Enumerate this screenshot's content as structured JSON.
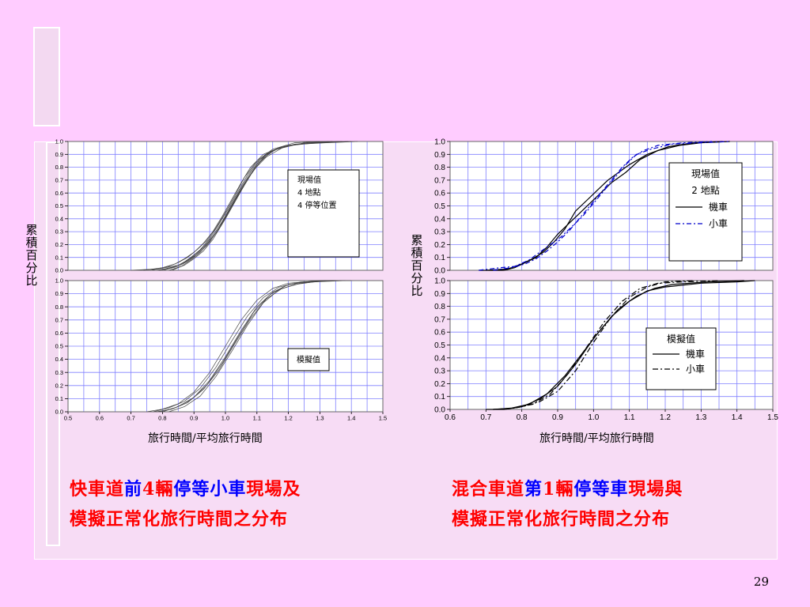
{
  "page_number": "29",
  "left_panel": {
    "ylabel": "累積百分比",
    "xlabel": "旅行時間/平均旅行時間",
    "caption_line1": [
      {
        "text": "快車道",
        "color": "red"
      },
      {
        "text": "前",
        "color": "blue"
      },
      {
        "text": "4",
        "color": "red"
      },
      {
        "text": "輛",
        "color": "red"
      },
      {
        "text": "停等小車",
        "color": "blue"
      },
      {
        "text": "現場及",
        "color": "red"
      }
    ],
    "caption_line2": "模擬正常化旅行時間之分布"
  },
  "right_panel": {
    "ylabel": "累積百分比",
    "xlabel": "旅行時間/平均旅行時間",
    "caption_line1": [
      {
        "text": "混合車道",
        "color": "red"
      },
      {
        "text": "第",
        "color": "blue"
      },
      {
        "text": "1",
        "color": "red"
      },
      {
        "text": "輛",
        "color": "red"
      },
      {
        "text": "停等車",
        "color": "blue"
      },
      {
        "text": "現場與",
        "color": "red"
      }
    ],
    "caption_line2": "模擬正常化旅行時間之分布"
  },
  "chart_data": [
    {
      "id": "left-top",
      "type": "line",
      "legend_lines": [
        "現場值",
        "4 地點",
        "4 停等位置"
      ],
      "legend_placement": "right",
      "xlim": [
        0.5,
        1.5
      ],
      "ylim": [
        0.0,
        1.0
      ],
      "x_ticks": [],
      "y_ticks": [
        "0.0",
        "0.1",
        "0.2",
        "0.3",
        "0.4",
        "0.5",
        "0.6",
        "0.7",
        "0.8",
        "0.9",
        "1.0"
      ],
      "grid": true,
      "line_color": "#444444",
      "series": [
        {
          "x": [
            0.7,
            0.78,
            0.82,
            0.85,
            0.88,
            0.91,
            0.94,
            0.97,
            1.0,
            1.03,
            1.06,
            1.1,
            1.15,
            1.22,
            1.3
          ],
          "y": [
            0.0,
            0.01,
            0.03,
            0.06,
            0.1,
            0.16,
            0.23,
            0.33,
            0.45,
            0.58,
            0.72,
            0.85,
            0.94,
            0.99,
            1.0
          ]
        },
        {
          "x": [
            0.74,
            0.8,
            0.84,
            0.87,
            0.9,
            0.93,
            0.96,
            0.99,
            1.02,
            1.05,
            1.08,
            1.12,
            1.18,
            1.26,
            1.34
          ],
          "y": [
            0.0,
            0.02,
            0.05,
            0.09,
            0.14,
            0.21,
            0.3,
            0.42,
            0.55,
            0.68,
            0.8,
            0.9,
            0.96,
            0.99,
            1.0
          ]
        },
        {
          "x": [
            0.78,
            0.83,
            0.86,
            0.89,
            0.92,
            0.95,
            0.98,
            1.01,
            1.04,
            1.07,
            1.1,
            1.14,
            1.2,
            1.28,
            1.36
          ],
          "y": [
            0.0,
            0.02,
            0.05,
            0.1,
            0.16,
            0.25,
            0.36,
            0.48,
            0.61,
            0.74,
            0.84,
            0.92,
            0.97,
            0.99,
            1.0
          ]
        },
        {
          "x": [
            0.8,
            0.85,
            0.88,
            0.91,
            0.94,
            0.97,
            1.0,
            1.03,
            1.06,
            1.09,
            1.12,
            1.16,
            1.22,
            1.3,
            1.4
          ],
          "y": [
            0.0,
            0.03,
            0.07,
            0.12,
            0.19,
            0.29,
            0.41,
            0.54,
            0.67,
            0.78,
            0.87,
            0.94,
            0.98,
            0.99,
            1.0
          ]
        },
        {
          "x": [
            0.82,
            0.86,
            0.89,
            0.92,
            0.95,
            0.98,
            1.01,
            1.04,
            1.07,
            1.1,
            1.13,
            1.17,
            1.23,
            1.31,
            1.39
          ],
          "y": [
            0.0,
            0.03,
            0.08,
            0.14,
            0.22,
            0.33,
            0.46,
            0.59,
            0.71,
            0.82,
            0.9,
            0.95,
            0.98,
            0.99,
            1.0
          ]
        },
        {
          "x": [
            0.76,
            0.81,
            0.85,
            0.88,
            0.91,
            0.94,
            0.97,
            1.0,
            1.03,
            1.06,
            1.09,
            1.13,
            1.18,
            1.25,
            1.33
          ],
          "y": [
            0.0,
            0.02,
            0.04,
            0.08,
            0.13,
            0.2,
            0.29,
            0.4,
            0.53,
            0.66,
            0.78,
            0.88,
            0.95,
            0.99,
            1.0
          ]
        },
        {
          "x": [
            0.79,
            0.84,
            0.87,
            0.9,
            0.93,
            0.96,
            0.99,
            1.02,
            1.05,
            1.08,
            1.11,
            1.15,
            1.21,
            1.29,
            1.37
          ],
          "y": [
            0.0,
            0.03,
            0.06,
            0.11,
            0.18,
            0.27,
            0.38,
            0.51,
            0.64,
            0.76,
            0.86,
            0.93,
            0.97,
            0.99,
            1.0
          ]
        },
        {
          "x": [
            0.83,
            0.87,
            0.9,
            0.93,
            0.96,
            0.99,
            1.02,
            1.05,
            1.08,
            1.11,
            1.14,
            1.18,
            1.24,
            1.32,
            1.42
          ],
          "y": [
            0.0,
            0.04,
            0.09,
            0.15,
            0.24,
            0.36,
            0.49,
            0.62,
            0.74,
            0.84,
            0.91,
            0.96,
            0.98,
            0.99,
            1.0
          ]
        }
      ]
    },
    {
      "id": "left-bottom",
      "type": "line",
      "legend_lines": [
        "模擬值"
      ],
      "legend_placement": "right",
      "xlim": [
        0.5,
        1.5
      ],
      "ylim": [
        0.0,
        1.0
      ],
      "x_ticks": [
        "0.5",
        "0.6",
        "0.7",
        "0.8",
        "0.9",
        "1.0",
        "1.1",
        "1.2",
        "1.3",
        "1.4",
        "1.5"
      ],
      "y_ticks": [
        "0.0",
        "0.1",
        "0.2",
        "0.3",
        "0.4",
        "0.5",
        "0.6",
        "0.7",
        "0.8",
        "0.9",
        "1.0"
      ],
      "grid": true,
      "line_color": "#444444",
      "series": [
        {
          "x": [
            0.75,
            0.8,
            0.85,
            0.9,
            0.95,
            1.0,
            1.05,
            1.1,
            1.15,
            1.2,
            1.3,
            1.4
          ],
          "y": [
            0.0,
            0.02,
            0.06,
            0.15,
            0.3,
            0.5,
            0.7,
            0.85,
            0.94,
            0.98,
            1.0,
            1.0
          ]
        },
        {
          "x": [
            0.77,
            0.82,
            0.87,
            0.92,
            0.97,
            1.02,
            1.07,
            1.12,
            1.17,
            1.22,
            1.32
          ],
          "y": [
            0.0,
            0.03,
            0.08,
            0.18,
            0.34,
            0.54,
            0.73,
            0.87,
            0.95,
            0.98,
            1.0
          ]
        },
        {
          "x": [
            0.79,
            0.84,
            0.89,
            0.94,
            0.99,
            1.04,
            1.09,
            1.14,
            1.19,
            1.24,
            1.34
          ],
          "y": [
            0.0,
            0.03,
            0.09,
            0.2,
            0.37,
            0.57,
            0.76,
            0.89,
            0.96,
            0.99,
            1.0
          ]
        },
        {
          "x": [
            0.8,
            0.85,
            0.9,
            0.95,
            1.0,
            1.05,
            1.1,
            1.15,
            1.2,
            1.26,
            1.35
          ],
          "y": [
            0.0,
            0.04,
            0.11,
            0.24,
            0.42,
            0.62,
            0.8,
            0.91,
            0.97,
            0.99,
            1.0
          ]
        },
        {
          "x": [
            0.78,
            0.83,
            0.88,
            0.93,
            0.98,
            1.03,
            1.08,
            1.13,
            1.18,
            1.24,
            1.33
          ],
          "y": [
            0.0,
            0.02,
            0.07,
            0.17,
            0.32,
            0.52,
            0.71,
            0.86,
            0.94,
            0.98,
            1.0
          ]
        },
        {
          "x": [
            0.82,
            0.87,
            0.92,
            0.97,
            1.02,
            1.07,
            1.12,
            1.17,
            1.22,
            1.28,
            1.38
          ],
          "y": [
            0.0,
            0.04,
            0.12,
            0.27,
            0.46,
            0.66,
            0.83,
            0.93,
            0.97,
            0.99,
            1.0
          ]
        }
      ]
    },
    {
      "id": "right-top",
      "type": "line",
      "legend_lines": [
        "現場值",
        "2 地點",
        "機車",
        "小車"
      ],
      "legend_placement": "right",
      "xlim": [
        0.6,
        1.5
      ],
      "ylim": [
        0.0,
        1.0
      ],
      "x_ticks": [],
      "y_ticks": [
        "0.0",
        "0.1",
        "0.2",
        "0.3",
        "0.4",
        "0.5",
        "0.6",
        "0.7",
        "0.8",
        "0.9",
        "1.0"
      ],
      "grid": true,
      "series": [
        {
          "name": "機車",
          "color": "#000000",
          "dash": "",
          "x": [
            0.68,
            0.75,
            0.78,
            0.81,
            0.84,
            0.87,
            0.9,
            0.93,
            0.96,
            0.99,
            1.02,
            1.05,
            1.09,
            1.13,
            1.18,
            1.24,
            1.3,
            1.38
          ],
          "y": [
            0.0,
            0.0,
            0.02,
            0.06,
            0.1,
            0.18,
            0.28,
            0.36,
            0.44,
            0.52,
            0.6,
            0.68,
            0.76,
            0.86,
            0.93,
            0.97,
            0.99,
            1.0
          ]
        },
        {
          "name": "機車",
          "color": "#000000",
          "dash": "",
          "x": [
            0.7,
            0.76,
            0.8,
            0.83,
            0.86,
            0.89,
            0.92,
            0.95,
            0.98,
            1.01,
            1.04,
            1.07,
            1.1,
            1.15,
            1.21,
            1.28,
            1.36
          ],
          "y": [
            0.0,
            0.01,
            0.05,
            0.09,
            0.14,
            0.22,
            0.32,
            0.46,
            0.54,
            0.62,
            0.7,
            0.76,
            0.82,
            0.9,
            0.96,
            0.99,
            1.0
          ]
        },
        {
          "name": "小車",
          "color": "#0000cc",
          "dash": "6,3,2,3",
          "x": [
            0.68,
            0.74,
            0.78,
            0.82,
            0.85,
            0.88,
            0.91,
            0.94,
            0.97,
            1.0,
            1.03,
            1.06,
            1.09,
            1.12,
            1.16,
            1.22,
            1.3,
            1.38
          ],
          "y": [
            0.0,
            0.02,
            0.03,
            0.08,
            0.14,
            0.2,
            0.26,
            0.34,
            0.42,
            0.52,
            0.62,
            0.72,
            0.82,
            0.9,
            0.94,
            0.98,
            0.99,
            1.0
          ]
        },
        {
          "name": "小車",
          "color": "#0000cc",
          "dash": "6,3,2,3",
          "x": [
            0.72,
            0.77,
            0.81,
            0.84,
            0.87,
            0.9,
            0.93,
            0.96,
            0.99,
            1.02,
            1.05,
            1.08,
            1.11,
            1.14,
            1.18,
            1.25,
            1.33
          ],
          "y": [
            0.0,
            0.02,
            0.05,
            0.09,
            0.15,
            0.22,
            0.3,
            0.4,
            0.5,
            0.6,
            0.7,
            0.8,
            0.88,
            0.93,
            0.97,
            0.99,
            1.0
          ]
        }
      ]
    },
    {
      "id": "right-bottom",
      "type": "line",
      "legend_lines": [
        "模擬值",
        "機車",
        "小車"
      ],
      "legend_placement": "right",
      "xlim": [
        0.6,
        1.5
      ],
      "ylim": [
        0.0,
        1.0
      ],
      "x_ticks": [
        "0.6",
        "0.7",
        "0.8",
        "0.9",
        "1.0",
        "1.1",
        "1.2",
        "1.3",
        "1.4",
        "1.5"
      ],
      "y_ticks": [
        "0.0",
        "0.1",
        "0.2",
        "0.3",
        "0.4",
        "0.5",
        "0.6",
        "0.7",
        "0.8",
        "0.9",
        "1.0"
      ],
      "grid": true,
      "series": [
        {
          "name": "機車",
          "color": "#000000",
          "dash": "",
          "x": [
            0.7,
            0.75,
            0.8,
            0.85,
            0.9,
            0.95,
            1.0,
            1.05,
            1.1,
            1.15,
            1.2,
            1.3,
            1.4,
            1.45
          ],
          "y": [
            0.0,
            0.0,
            0.02,
            0.08,
            0.18,
            0.35,
            0.55,
            0.72,
            0.84,
            0.92,
            0.95,
            0.98,
            0.99,
            1.0
          ]
        },
        {
          "name": "機車",
          "color": "#000000",
          "dash": "",
          "x": [
            0.72,
            0.77,
            0.82,
            0.87,
            0.92,
            0.97,
            1.02,
            1.07,
            1.12,
            1.17,
            1.22,
            1.32,
            1.42
          ],
          "y": [
            0.0,
            0.01,
            0.04,
            0.12,
            0.26,
            0.44,
            0.62,
            0.78,
            0.88,
            0.94,
            0.97,
            0.99,
            1.0
          ]
        },
        {
          "name": "小車",
          "color": "#000000",
          "dash": "7,3,2,3",
          "x": [
            0.72,
            0.78,
            0.83,
            0.88,
            0.93,
            0.98,
            1.03,
            1.08,
            1.13,
            1.18,
            1.25,
            1.35
          ],
          "y": [
            0.0,
            0.01,
            0.04,
            0.12,
            0.28,
            0.48,
            0.68,
            0.84,
            0.94,
            0.98,
            0.99,
            1.0
          ]
        },
        {
          "name": "小車",
          "color": "#000000",
          "dash": "7,3,2,3",
          "x": [
            0.75,
            0.8,
            0.85,
            0.9,
            0.95,
            1.0,
            1.05,
            1.1,
            1.15,
            1.2,
            1.28
          ],
          "y": [
            0.0,
            0.02,
            0.06,
            0.14,
            0.3,
            0.52,
            0.72,
            0.87,
            0.95,
            0.99,
            1.0
          ]
        }
      ]
    }
  ]
}
